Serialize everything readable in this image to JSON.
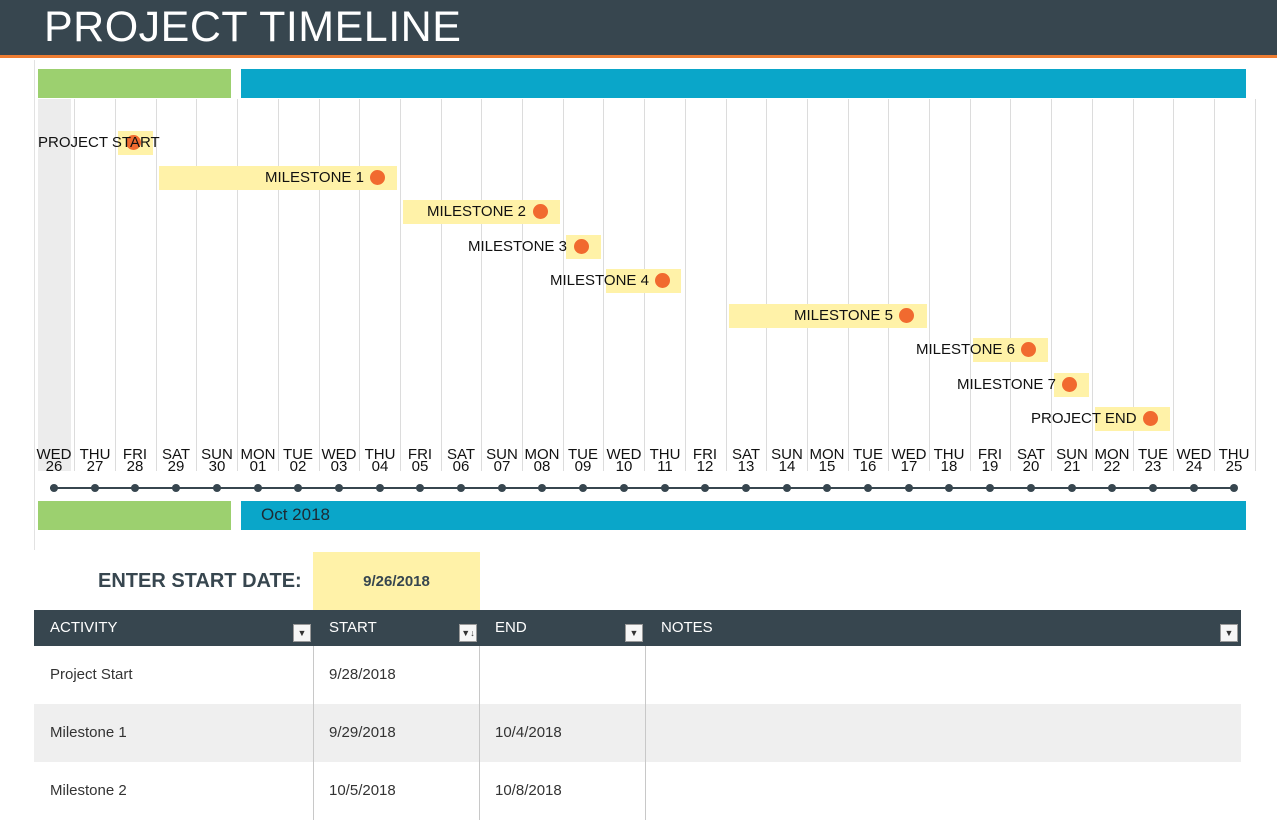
{
  "header": {
    "title": "PROJECT TIMELINE"
  },
  "timeline": {
    "month_label": "Oct 2018",
    "days": [
      {
        "name": "WED",
        "num": "26"
      },
      {
        "name": "THU",
        "num": "27"
      },
      {
        "name": "FRI",
        "num": "28"
      },
      {
        "name": "SAT",
        "num": "29"
      },
      {
        "name": "SUN",
        "num": "30"
      },
      {
        "name": "MON",
        "num": "01"
      },
      {
        "name": "TUE",
        "num": "02"
      },
      {
        "name": "WED",
        "num": "03"
      },
      {
        "name": "THU",
        "num": "04"
      },
      {
        "name": "FRI",
        "num": "05"
      },
      {
        "name": "SAT",
        "num": "06"
      },
      {
        "name": "SUN",
        "num": "07"
      },
      {
        "name": "MON",
        "num": "08"
      },
      {
        "name": "TUE",
        "num": "09"
      },
      {
        "name": "WED",
        "num": "10"
      },
      {
        "name": "THU",
        "num": "11"
      },
      {
        "name": "FRI",
        "num": "12"
      },
      {
        "name": "SAT",
        "num": "13"
      },
      {
        "name": "SUN",
        "num": "14"
      },
      {
        "name": "MON",
        "num": "15"
      },
      {
        "name": "TUE",
        "num": "16"
      },
      {
        "name": "WED",
        "num": "17"
      },
      {
        "name": "THU",
        "num": "18"
      },
      {
        "name": "FRI",
        "num": "19"
      },
      {
        "name": "SAT",
        "num": "20"
      },
      {
        "name": "SUN",
        "num": "21"
      },
      {
        "name": "MON",
        "num": "22"
      },
      {
        "name": "TUE",
        "num": "23"
      },
      {
        "name": "WED",
        "num": "24"
      },
      {
        "name": "THU",
        "num": "25"
      }
    ],
    "milestones": [
      {
        "label": "PROJECT START",
        "start_day": 2,
        "end_day": 2
      },
      {
        "label": "MILESTONE 1",
        "start_day": 3,
        "end_day": 8
      },
      {
        "label": "MILESTONE 2",
        "start_day": 9,
        "end_day": 12
      },
      {
        "label": "MILESTONE 3",
        "start_day": 13,
        "end_day": 13
      },
      {
        "label": "MILESTONE 4",
        "start_day": 14,
        "end_day": 15
      },
      {
        "label": "MILESTONE 5",
        "start_day": 17,
        "end_day": 21
      },
      {
        "label": "MILESTONE 6",
        "start_day": 23,
        "end_day": 24
      },
      {
        "label": "MILESTONE 7",
        "start_day": 25,
        "end_day": 25
      },
      {
        "label": "PROJECT END",
        "start_day": 26,
        "end_day": 27
      }
    ],
    "colors": {
      "bar": "#fff2a8",
      "dot": "#f16a2f",
      "band_green": "#9cd06f",
      "band_blue": "#0aa6c9"
    }
  },
  "start_date": {
    "label": "ENTER START DATE:",
    "value": "9/26/2018"
  },
  "table": {
    "headers": [
      {
        "label": "ACTIVITY",
        "filter_icon": "dropdown-arrow-icon"
      },
      {
        "label": "START",
        "filter_icon": "sort-filter-icon"
      },
      {
        "label": "END",
        "filter_icon": "dropdown-arrow-icon"
      },
      {
        "label": "NOTES",
        "filter_icon": "dropdown-arrow-icon"
      }
    ],
    "rows": [
      {
        "activity": "Project Start",
        "start": "9/28/2018",
        "end": "",
        "notes": ""
      },
      {
        "activity": "Milestone 1",
        "start": "9/29/2018",
        "end": "10/4/2018",
        "notes": ""
      },
      {
        "activity": "Milestone 2",
        "start": "10/5/2018",
        "end": "10/8/2018",
        "notes": ""
      }
    ]
  }
}
